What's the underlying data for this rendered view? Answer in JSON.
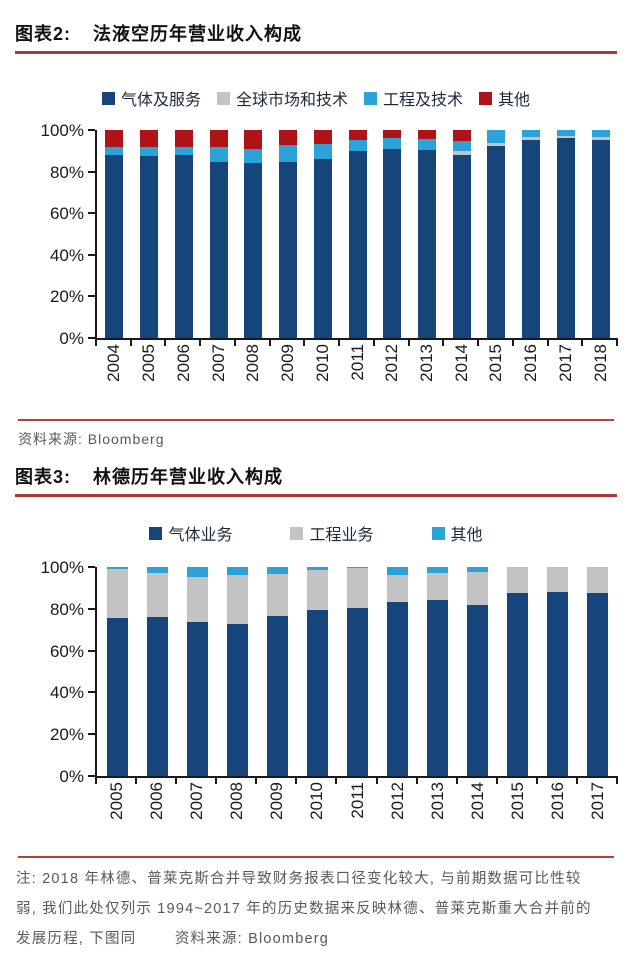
{
  "chart_data": [
    {
      "type": "bar",
      "subtype": "stacked-100-percent",
      "figure_label": "图表2:",
      "title": "法液空历年营业收入构成",
      "categories": [
        "2004",
        "2005",
        "2006",
        "2007",
        "2008",
        "2009",
        "2010",
        "2011",
        "2012",
        "2013",
        "2014",
        "2015",
        "2016",
        "2017",
        "2018"
      ],
      "series": [
        {
          "name": "气体及服务",
          "color": "#154579",
          "values": [
            88,
            87.5,
            88,
            84.5,
            84,
            84.5,
            86,
            90,
            91,
            90.5,
            88,
            92.5,
            95,
            96,
            95
          ]
        },
        {
          "name": "全球市场和技术",
          "color": "#c3c3c3",
          "values": [
            0,
            0,
            0,
            0,
            0,
            0,
            0,
            0,
            0,
            0,
            2,
            1.5,
            1.5,
            1,
            1.5
          ]
        },
        {
          "name": "工程及技术",
          "color": "#2ba3d8",
          "values": [
            4,
            4.5,
            4,
            7.5,
            7,
            8.5,
            7.5,
            5,
            5,
            5,
            4.5,
            6,
            3.5,
            3,
            3.5
          ]
        },
        {
          "name": "其他",
          "color": "#af1317",
          "values": [
            8,
            8,
            8,
            8,
            9,
            7,
            6.5,
            5,
            4,
            4.5,
            5.5,
            0,
            0,
            0,
            0
          ]
        }
      ],
      "ylim": [
        0,
        100
      ],
      "yticks": [
        "0%",
        "20%",
        "40%",
        "60%",
        "80%",
        "100%"
      ],
      "grid": false,
      "legend_position": "top",
      "source_label": "资料来源:",
      "source": "Bloomberg"
    },
    {
      "type": "bar",
      "subtype": "stacked-100-percent",
      "figure_label": "图表3:",
      "title": "林德历年营业收入构成",
      "categories": [
        "2005",
        "2006",
        "2007",
        "2008",
        "2009",
        "2010",
        "2011",
        "2012",
        "2013",
        "2014",
        "2015",
        "2016",
        "2017"
      ],
      "series": [
        {
          "name": "气体业务",
          "color": "#154579",
          "values": [
            75.5,
            76,
            73.5,
            72.5,
            76.5,
            79.5,
            80.5,
            83.5,
            84,
            82,
            87.5,
            88,
            87.5
          ]
        },
        {
          "name": "工程业务",
          "color": "#c3c3c3",
          "values": [
            23.5,
            21,
            21.5,
            23.5,
            20,
            19,
            19,
            12.5,
            13,
            15.5,
            12.5,
            12,
            12.5
          ]
        },
        {
          "name": "其他",
          "color": "#2ba3d8",
          "values": [
            1,
            3,
            5,
            4,
            3.5,
            1.5,
            0.5,
            4,
            3,
            2.5,
            0,
            0,
            0
          ]
        }
      ],
      "ylim": [
        0,
        100
      ],
      "yticks": [
        "0%",
        "20%",
        "40%",
        "60%",
        "80%",
        "100%"
      ],
      "grid": false,
      "legend_position": "top"
    }
  ],
  "note": {
    "lines": [
      "注: 2018 年林德、普莱克斯合并导致财务报表口径变化较大, 与前期数据可比性较",
      "弱, 我们此处仅列示 1994~2017 年的历史数据来反映林德、普莱克斯重大合并前的",
      "发展历程, 下图同"
    ],
    "source_label": "资料来源:",
    "source": "Bloomberg"
  },
  "colors": {
    "accent_red_line": "#b04340",
    "axis": "#1a1a1a",
    "muted_text": "#595959"
  }
}
